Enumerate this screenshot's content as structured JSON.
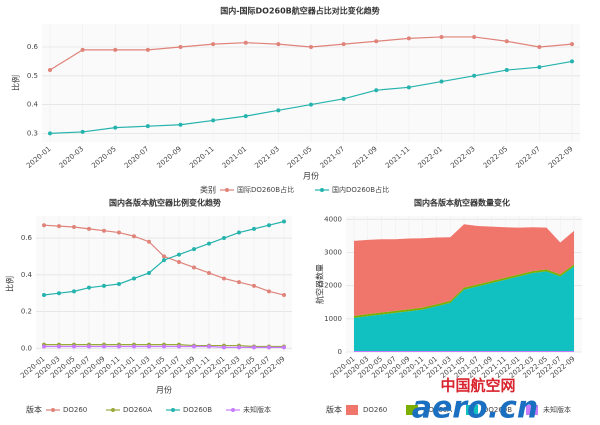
{
  "chart_data": [
    {
      "type": "line",
      "title": "国内-国际DO260B航空器占比对比变化趋势",
      "x_label": "月份",
      "y_label": "比例",
      "categories": [
        "2020-01",
        "2020-03",
        "2020-05",
        "2020-07",
        "2020-09",
        "2020-11",
        "2021-01",
        "2021-03",
        "2021-05",
        "2021-07",
        "2021-09",
        "2021-11",
        "2022-01",
        "2022-03",
        "2022-05",
        "2022-07",
        "2022-09"
      ],
      "ylim": [
        0.27,
        0.68
      ],
      "yticks": [
        0.3,
        0.4,
        0.5,
        0.6
      ],
      "grid": true,
      "legend_title": "类别",
      "series": [
        {
          "name": "国际DO260B占比",
          "color": "#e0837a",
          "values": [
            0.52,
            0.59,
            0.59,
            0.59,
            0.6,
            0.61,
            0.615,
            0.61,
            0.6,
            0.61,
            0.62,
            0.63,
            0.635,
            0.635,
            0.62,
            0.6,
            0.61
          ]
        },
        {
          "name": "国内DO260B占比",
          "color": "#25b3ad",
          "values": [
            0.3,
            0.305,
            0.32,
            0.325,
            0.33,
            0.345,
            0.36,
            0.38,
            0.4,
            0.42,
            0.45,
            0.46,
            0.48,
            0.5,
            0.52,
            0.53,
            0.55
          ]
        }
      ]
    },
    {
      "type": "line",
      "title": "国内各版本航空器比例变化趋势",
      "x_label": "月份",
      "y_label": "比例",
      "categories": [
        "2020-01",
        "2020-03",
        "2020-05",
        "2020-07",
        "2020-09",
        "2020-11",
        "2021-01",
        "2021-03",
        "2021-05",
        "2021-07",
        "2021-09",
        "2021-11",
        "2022-01",
        "2022-03",
        "2022-05",
        "2022-07",
        "2022-09"
      ],
      "ylim": [
        -0.02,
        0.72
      ],
      "yticks": [
        {
          "value": 0,
          "label": "0.0"
        },
        0.2,
        0.4,
        0.6
      ],
      "grid": true,
      "legend_title": "版本",
      "series": [
        {
          "name": "DO260",
          "color": "#e0837a",
          "values": [
            0.67,
            0.665,
            0.66,
            0.65,
            0.64,
            0.63,
            0.61,
            0.58,
            0.5,
            0.47,
            0.44,
            0.41,
            0.38,
            0.36,
            0.34,
            0.31,
            0.29
          ]
        },
        {
          "name": "DO260A",
          "color": "#9aa83a",
          "values": [
            0.02,
            0.02,
            0.02,
            0.02,
            0.02,
            0.02,
            0.02,
            0.02,
            0.02,
            0.02,
            0.015,
            0.015,
            0.015,
            0.015,
            0.01,
            0.01,
            0.01
          ]
        },
        {
          "name": "DO260B",
          "color": "#25b3ad",
          "values": [
            0.29,
            0.3,
            0.31,
            0.33,
            0.34,
            0.35,
            0.38,
            0.41,
            0.48,
            0.51,
            0.54,
            0.57,
            0.6,
            0.63,
            0.65,
            0.67,
            0.69
          ]
        },
        {
          "name": "未知版本",
          "color": "#c77cff",
          "values": [
            0.01,
            0.01,
            0.01,
            0.01,
            0.01,
            0.01,
            0.01,
            0.01,
            0.01,
            0.01,
            0.01,
            0.01,
            0.005,
            0.005,
            0.005,
            0.005,
            0.005
          ]
        }
      ]
    },
    {
      "type": "area",
      "title": "国内各版本航空器数量变化",
      "y_label": "航空器数量",
      "categories": [
        "2020-01",
        "2020-03",
        "2020-05",
        "2020-07",
        "2020-09",
        "2020-11",
        "2021-01",
        "2021-03",
        "2021-05",
        "2021-07",
        "2021-09",
        "2021-11",
        "2022-01",
        "2022-03",
        "2022-05",
        "2022-07",
        "2022-09"
      ],
      "ylim": [
        0,
        4100
      ],
      "yticks": [
        0,
        1000,
        2000,
        3000,
        4000
      ],
      "grid": true,
      "legend_title": "版本",
      "series": [
        {
          "name": "DO260",
          "color": "#f0766c",
          "values": [
            2260,
            2240,
            2210,
            2160,
            2130,
            2090,
            2010,
            1920,
            1910,
            1760,
            1640,
            1520,
            1410,
            1320,
            1260,
            960,
            1010
          ]
        },
        {
          "name": "DO260A",
          "color": "#7cae00",
          "values": [
            60,
            60,
            60,
            60,
            60,
            60,
            60,
            60,
            60,
            60,
            60,
            60,
            60,
            60,
            60,
            60,
            60
          ]
        },
        {
          "name": "DO260B",
          "color": "#11c0c0",
          "values": [
            1000,
            1050,
            1100,
            1150,
            1200,
            1250,
            1350,
            1450,
            1850,
            1950,
            2050,
            2150,
            2250,
            2350,
            2400,
            2250,
            2550
          ]
        },
        {
          "name": "未知版本",
          "color": "#c77cff",
          "values": [
            30,
            30,
            30,
            30,
            30,
            30,
            30,
            30,
            30,
            30,
            30,
            30,
            30,
            30,
            30,
            30,
            30
          ]
        }
      ]
    }
  ],
  "watermark": {
    "cn": "中国航空网",
    "en": "aero.cn"
  }
}
